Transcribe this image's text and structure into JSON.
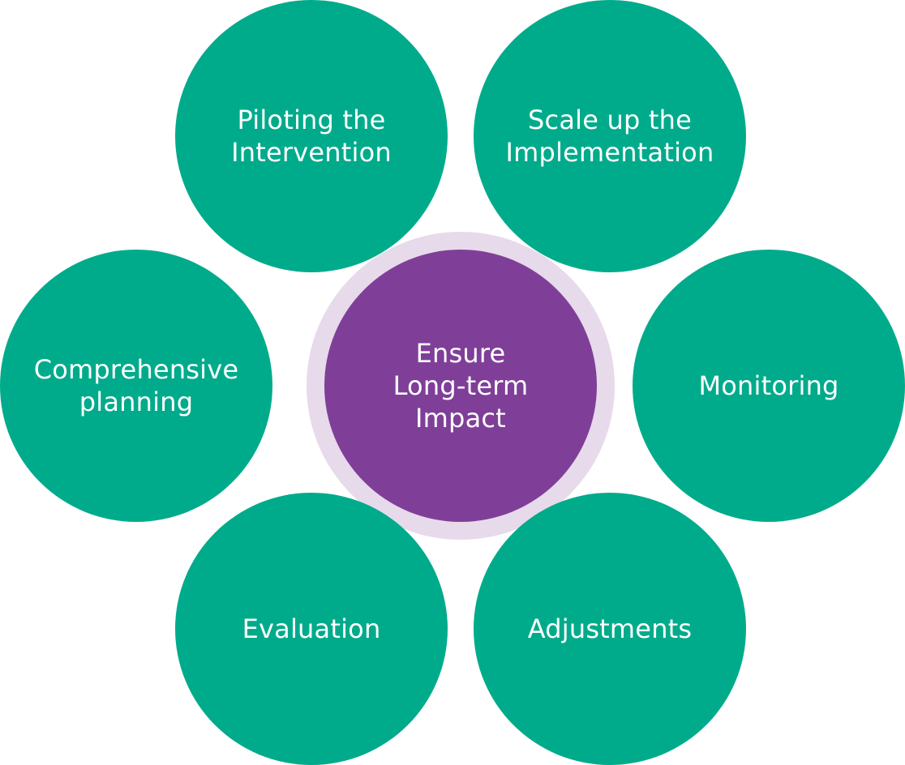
{
  "diagram": {
    "center": {
      "label": "Ensure\nLong-term\nImpact"
    },
    "nodes": {
      "piloting": {
        "label": "Piloting the\nIntervention"
      },
      "scale_up": {
        "label": "Scale up the\nImplementation"
      },
      "comprehensive": {
        "label": "Comprehensive\nplanning"
      },
      "monitoring": {
        "label": "Monitoring"
      },
      "evaluation": {
        "label": "Evaluation"
      },
      "adjustments": {
        "label": "Adjustments"
      }
    }
  },
  "colors": {
    "node_fill": "#00AB8B",
    "center_fill": "#7F3F98",
    "center_ring": "#E7DAEA",
    "text": "#FFFFFF"
  }
}
